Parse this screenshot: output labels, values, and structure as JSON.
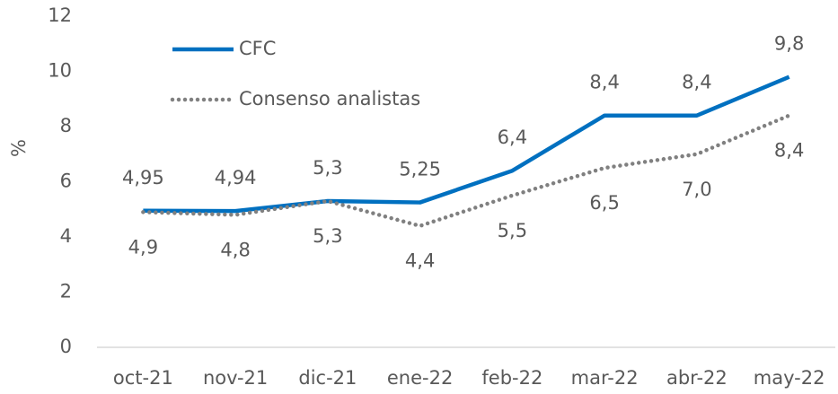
{
  "chart_data": {
    "type": "line",
    "ylabel": "%",
    "categories": [
      "oct-21",
      "nov-21",
      "dic-21",
      "ene-22",
      "feb-22",
      "mar-22",
      "abr-22",
      "may-22"
    ],
    "series": [
      {
        "name": "CFC",
        "color": "#0070c0",
        "style": "solid",
        "values": [
          4.95,
          4.94,
          5.3,
          5.25,
          6.4,
          8.4,
          8.4,
          9.8
        ],
        "value_labels": [
          "4,95",
          "4,94",
          "5,3",
          "5,25",
          "6,4",
          "8,4",
          "8,4",
          "9,8"
        ],
        "label_position": "above"
      },
      {
        "name": "Consenso analistas",
        "color": "#808080",
        "style": "dotted",
        "values": [
          4.9,
          4.8,
          5.3,
          4.4,
          5.5,
          6.5,
          7.0,
          8.4
        ],
        "value_labels": [
          "4,9",
          "4,8",
          "5,3",
          "4,4",
          "5,5",
          "6,5",
          "7,0",
          "8,4"
        ],
        "label_position": "below"
      }
    ],
    "ylim": [
      0,
      12
    ],
    "yticks": [
      0,
      2,
      4,
      6,
      8,
      10,
      12
    ],
    "grid": false,
    "legend": "upper left"
  }
}
